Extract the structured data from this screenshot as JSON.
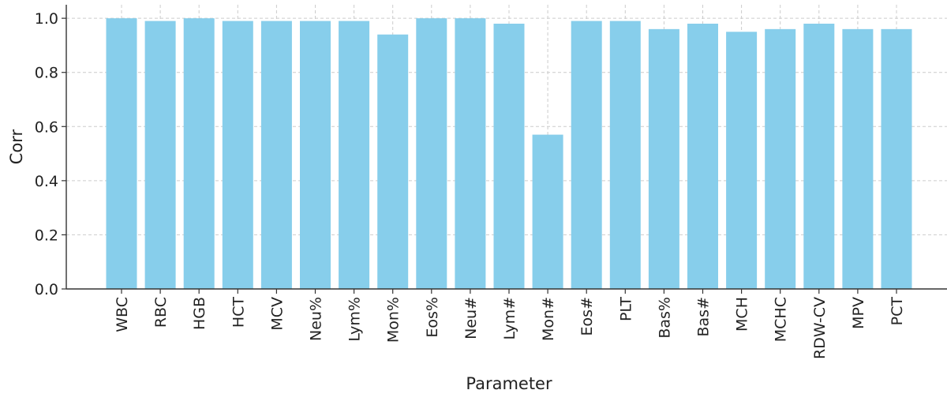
{
  "chart_data": {
    "type": "bar",
    "xlabel": "Parameter",
    "ylabel": "Corr",
    "categories": [
      "WBC",
      "RBC",
      "HGB",
      "HCT",
      "MCV",
      "Neu%",
      "Lym%",
      "Mon%",
      "Eos%",
      "Neu#",
      "Lym#",
      "Mon#",
      "Eos#",
      "PLT",
      "Bas%",
      "Bas#",
      "MCH",
      "MCHC",
      "RDW-CV",
      "MPV",
      "PCT"
    ],
    "values": [
      1.0,
      0.99,
      1.0,
      0.99,
      0.99,
      0.99,
      0.99,
      0.94,
      1.0,
      1.0,
      0.98,
      0.57,
      0.99,
      0.99,
      0.96,
      0.98,
      0.95,
      0.96,
      0.98,
      0.96,
      0.96
    ],
    "ylim": [
      0,
      1.05
    ],
    "yticks": [
      "0.0",
      "0.2",
      "0.4",
      "0.6",
      "0.8",
      "1.0"
    ],
    "grid": true,
    "bar_color": "#87ceeb",
    "grid_color": "#cccccc",
    "axis_color": "#333333"
  }
}
